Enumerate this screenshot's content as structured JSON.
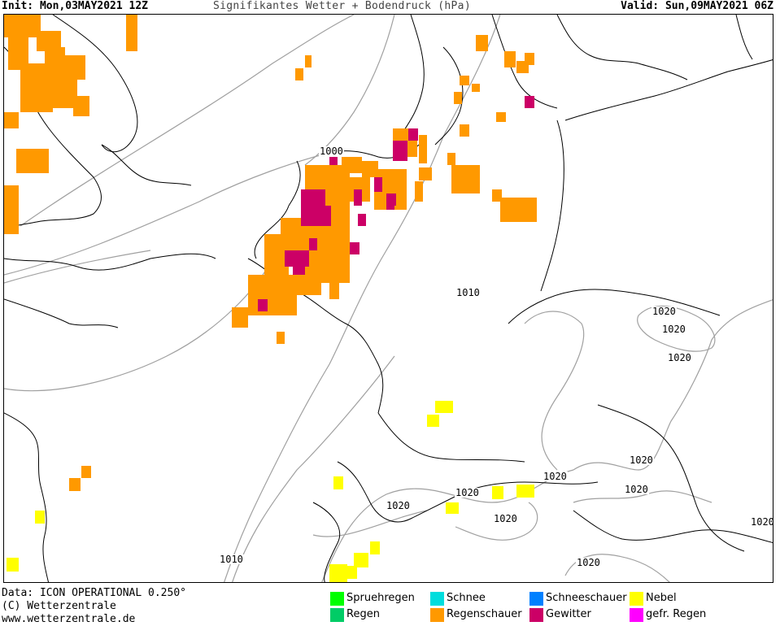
{
  "header": {
    "init": "Init: Mon,03MAY2021 12Z",
    "title": "Signifikantes Wetter +  Bodendruck (hPa)",
    "valid": "Valid: Sun,09MAY2021 06Z"
  },
  "colors": {
    "regenschauer": "#ff9900",
    "gewitter": "#cc0066",
    "nebel": "#ffff00",
    "coastline": "#000000",
    "isobar": "#a0a0a0"
  },
  "isobar_labels": [
    "1000",
    "1010",
    "1020",
    "1020",
    "1020",
    "1020",
    "1020",
    "1020",
    "1020",
    "1020",
    "1020",
    "1020",
    "1010",
    "1020"
  ],
  "legend": [
    {
      "label": "Spruehregen",
      "color": "#00ff00"
    },
    {
      "label": "Regen",
      "color": "#00cc66"
    },
    {
      "label": "Schnee",
      "color": "#00dddd"
    },
    {
      "label": "Regenschauer",
      "color": "#ff9900"
    },
    {
      "label": "Schneeschauer",
      "color": "#0080ff"
    },
    {
      "label": "Gewitter",
      "color": "#cc0066"
    },
    {
      "label": "Nebel",
      "color": "#ffff00"
    },
    {
      "label": "gefr. Regen",
      "color": "#ff00ff"
    }
  ],
  "footer": {
    "data": "Data: ICON OPERATIONAL 0.250°",
    "copyright": "(C) Wetterzentrale",
    "url": "www.wetterzentrale.de"
  }
}
